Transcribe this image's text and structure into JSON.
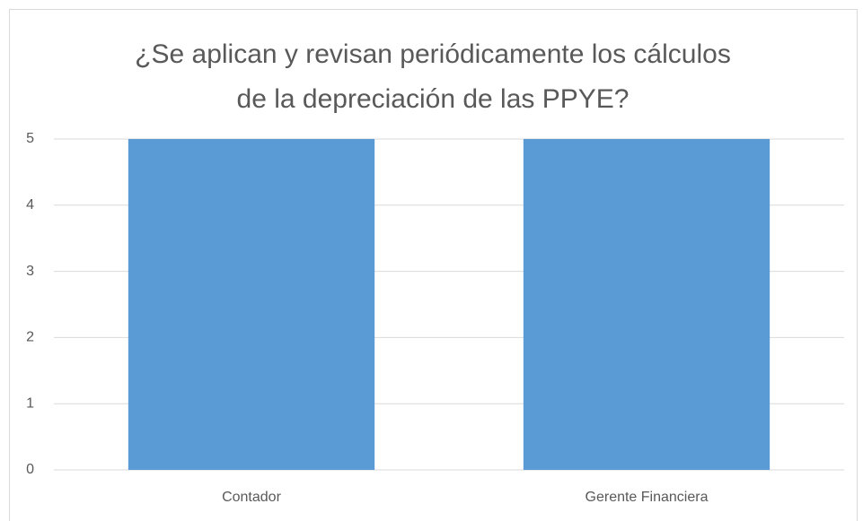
{
  "chart_data": {
    "type": "bar",
    "title": [
      "¿Se aplican y revisan periódicamente los cálculos",
      "de la depreciación de las PPYE?"
    ],
    "categories": [
      "Contador",
      "Gerente Financiera"
    ],
    "values": [
      5,
      5
    ],
    "color": "#5b9bd5",
    "ylim": [
      0,
      5
    ],
    "yticks": [
      0,
      1,
      2,
      3,
      4,
      5
    ],
    "grid": true
  }
}
